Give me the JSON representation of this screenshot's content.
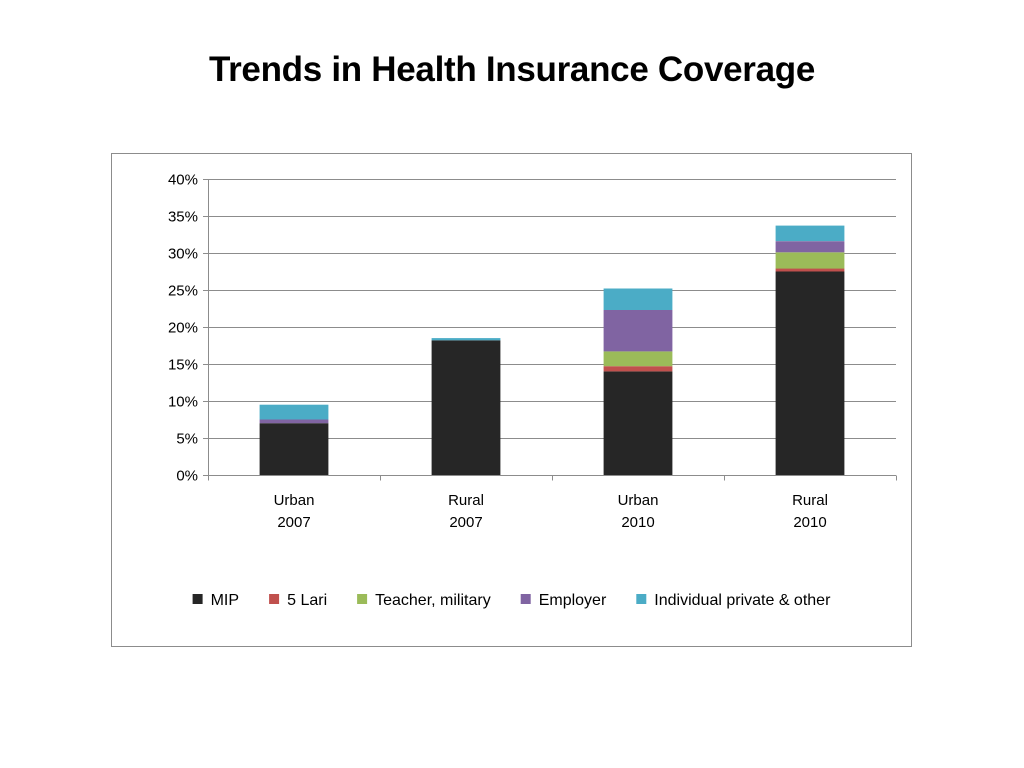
{
  "slide": {
    "title": "Trends in Health Insurance Coverage"
  },
  "chart_data": {
    "type": "bar",
    "stacked": true,
    "categories": [
      [
        "Urban",
        "2007"
      ],
      [
        "Rural",
        "2007"
      ],
      [
        "Urban",
        "2010"
      ],
      [
        "Rural",
        "2010"
      ]
    ],
    "series": [
      {
        "name": "MIP",
        "color": "#262626",
        "values": [
          7.0,
          18.2,
          14.0,
          27.5
        ]
      },
      {
        "name": "5 Lari",
        "color": "#c0504d",
        "values": [
          0.0,
          0.0,
          0.7,
          0.4
        ]
      },
      {
        "name": "Teacher, military",
        "color": "#9bbb59",
        "values": [
          0.0,
          0.0,
          2.0,
          2.2
        ]
      },
      {
        "name": "Employer",
        "color": "#8064a2",
        "values": [
          0.5,
          0.0,
          5.6,
          1.5
        ]
      },
      {
        "name": "Individual private & other",
        "color": "#4bacc6",
        "values": [
          2.0,
          0.3,
          2.9,
          2.1
        ]
      }
    ],
    "ylim": [
      0,
      40
    ],
    "yticks": [
      0,
      5,
      10,
      15,
      20,
      25,
      30,
      35,
      40
    ],
    "ytick_labels": [
      "0%",
      "5%",
      "10%",
      "15%",
      "20%",
      "25%",
      "30%",
      "35%",
      "40%"
    ],
    "grid": true,
    "legend_position": "bottom",
    "title": "",
    "xlabel": "",
    "ylabel": ""
  }
}
